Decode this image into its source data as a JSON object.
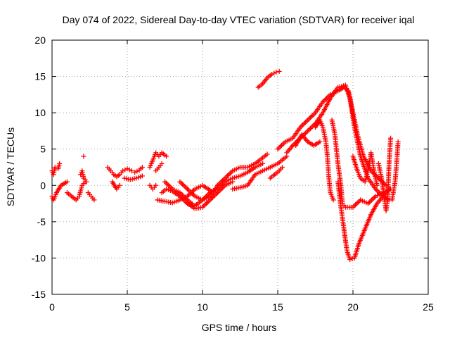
{
  "chart_data": {
    "type": "scatter",
    "title": "Day 074 of 2022, Sidereal Day-to-day VTEC variation (SDTVAR) for receiver iqal",
    "xlabel": "GPS time / hours",
    "ylabel": "SDTVAR / TECUs",
    "xlim": [
      0,
      25
    ],
    "ylim": [
      -15,
      20
    ],
    "xticks": [
      "0",
      "5",
      "10",
      "15",
      "20",
      "25"
    ],
    "yticks": [
      "-15",
      "-10",
      "-5",
      "0",
      "5",
      "10",
      "15",
      "20"
    ],
    "grid": true,
    "marker": "+",
    "color": "#ff0000",
    "segments": [
      {
        "name": "arc-1",
        "points": [
          [
            0.0,
            2.0
          ],
          [
            0.1,
            1.5
          ],
          [
            0.2,
            2.5
          ],
          [
            0.4,
            2.3
          ],
          [
            0.5,
            3.0
          ]
        ]
      },
      {
        "name": "arc-2",
        "points": [
          [
            0.0,
            -1.5
          ],
          [
            0.1,
            -2.0
          ],
          [
            0.3,
            -1.0
          ],
          [
            0.6,
            0.0
          ],
          [
            1.0,
            0.5
          ]
        ]
      },
      {
        "name": "arc-3",
        "points": [
          [
            1.0,
            -1.0
          ],
          [
            1.3,
            -1.5
          ],
          [
            1.6,
            -2.0
          ],
          [
            1.8,
            -1.5
          ],
          [
            2.0,
            0.0
          ],
          [
            2.2,
            0.5
          ]
        ]
      },
      {
        "name": "arc-4",
        "points": [
          [
            1.9,
            1.5
          ],
          [
            2.0,
            2.0
          ],
          [
            2.1,
            1.0
          ],
          [
            2.2,
            0.8
          ],
          [
            2.3,
            0.5
          ]
        ]
      },
      {
        "name": "arc-5",
        "points": [
          [
            2.1,
            4.0
          ]
        ]
      },
      {
        "name": "arc-6",
        "points": [
          [
            2.4,
            -1.0
          ],
          [
            2.6,
            -1.5
          ],
          [
            2.8,
            -2.0
          ]
        ]
      },
      {
        "name": "arc-7",
        "points": [
          [
            3.7,
            2.5
          ],
          [
            3.9,
            2.0
          ],
          [
            4.1,
            1.5
          ],
          [
            4.3,
            1.2
          ],
          [
            4.5,
            1.5
          ],
          [
            4.7,
            2.0
          ],
          [
            5.0,
            2.3
          ],
          [
            5.3,
            2.0
          ],
          [
            5.5,
            1.8
          ],
          [
            5.8,
            2.1
          ],
          [
            6.0,
            2.5
          ]
        ]
      },
      {
        "name": "arc-8",
        "points": [
          [
            4.0,
            0.5
          ],
          [
            4.3,
            -0.5
          ],
          [
            4.5,
            0.0
          ]
        ]
      },
      {
        "name": "arc-9",
        "points": [
          [
            4.8,
            1.0
          ],
          [
            5.2,
            0.8
          ],
          [
            5.6,
            1.0
          ],
          [
            6.0,
            1.3
          ]
        ]
      },
      {
        "name": "arc-10",
        "points": [
          [
            6.5,
            2.5
          ],
          [
            6.7,
            3.5
          ],
          [
            6.9,
            4.5
          ],
          [
            7.1,
            4.0
          ],
          [
            7.3,
            4.5
          ],
          [
            7.6,
            4.0
          ]
        ]
      },
      {
        "name": "arc-11",
        "points": [
          [
            6.9,
            2.0
          ],
          [
            7.1,
            2.5
          ],
          [
            7.3,
            3.0
          ]
        ]
      },
      {
        "name": "arc-12",
        "points": [
          [
            6.5,
            0.0
          ],
          [
            6.7,
            -0.5
          ],
          [
            6.9,
            0.0
          ]
        ]
      },
      {
        "name": "arc-13",
        "points": [
          [
            7.0,
            -2.0
          ],
          [
            7.5,
            -2.2
          ],
          [
            8.0,
            -2.4
          ],
          [
            8.5,
            -2.0
          ],
          [
            9.0,
            -1.5
          ],
          [
            9.5,
            -0.5
          ],
          [
            10.0,
            0.0
          ],
          [
            10.3,
            -0.4
          ],
          [
            10.6,
            -0.8
          ]
        ]
      },
      {
        "name": "arc-14",
        "points": [
          [
            7.3,
            -1.0
          ],
          [
            7.6,
            -0.5
          ],
          [
            8.0,
            -0.8
          ],
          [
            8.5,
            -1.5
          ],
          [
            9.0,
            -2.5
          ],
          [
            9.5,
            -3.2
          ],
          [
            10.0,
            -3.0
          ],
          [
            10.5,
            -2.0
          ],
          [
            11.0,
            -1.0
          ],
          [
            11.5,
            0.0
          ],
          [
            12.0,
            0.5
          ]
        ]
      },
      {
        "name": "arc-15",
        "points": [
          [
            7.5,
            0.5
          ],
          [
            8.0,
            -0.5
          ],
          [
            8.5,
            -1.0
          ],
          [
            9.0,
            -2.0
          ],
          [
            9.3,
            -2.5
          ]
        ]
      },
      {
        "name": "arc-16",
        "points": [
          [
            8.5,
            0.5
          ],
          [
            9.0,
            -0.5
          ],
          [
            9.5,
            -1.5
          ],
          [
            10.0,
            -2.0
          ],
          [
            10.5,
            -1.5
          ],
          [
            11.0,
            0.0
          ],
          [
            11.5,
            1.0
          ],
          [
            12.0,
            2.0
          ],
          [
            12.5,
            2.5
          ],
          [
            13.0,
            2.5
          ],
          [
            13.5,
            3.0
          ],
          [
            14.0,
            3.8
          ],
          [
            14.3,
            4.3
          ]
        ]
      },
      {
        "name": "arc-17",
        "points": [
          [
            9.0,
            -2.5
          ],
          [
            9.5,
            -2.8
          ],
          [
            10.0,
            -2.0
          ],
          [
            10.5,
            -1.0
          ],
          [
            11.0,
            -0.5
          ],
          [
            11.5,
            0.5
          ],
          [
            12.0,
            1.0
          ],
          [
            12.5,
            1.3
          ],
          [
            13.0,
            1.8
          ],
          [
            13.5,
            2.5
          ],
          [
            14.0,
            3.0
          ]
        ]
      },
      {
        "name": "arc-18",
        "points": [
          [
            12.0,
            -0.5
          ],
          [
            12.5,
            -0.3
          ],
          [
            13.0,
            0.0
          ],
          [
            13.5,
            1.5
          ],
          [
            14.0,
            2.0
          ],
          [
            14.5,
            2.5
          ],
          [
            15.0,
            3.0
          ],
          [
            15.3,
            3.5
          ],
          [
            15.6,
            4.0
          ]
        ]
      },
      {
        "name": "arc-19",
        "points": [
          [
            14.5,
            1.0
          ],
          [
            14.8,
            1.5
          ],
          [
            15.1,
            2.0
          ],
          [
            15.3,
            2.5
          ]
        ]
      },
      {
        "name": "arc-20",
        "points": [
          [
            13.7,
            13.5
          ],
          [
            14.0,
            14.0
          ],
          [
            14.3,
            14.8
          ],
          [
            14.6,
            15.3
          ],
          [
            14.9,
            15.6
          ],
          [
            15.1,
            15.7
          ]
        ]
      },
      {
        "name": "arc-21",
        "points": [
          [
            15.0,
            5.0
          ],
          [
            15.5,
            6.0
          ],
          [
            16.0,
            6.5
          ],
          [
            16.5,
            8.0
          ],
          [
            17.0,
            9.0
          ],
          [
            17.5,
            10.0
          ],
          [
            18.0,
            11.5
          ],
          [
            18.5,
            12.5
          ],
          [
            19.0,
            13.0
          ],
          [
            19.4,
            13.5
          ],
          [
            19.7,
            13.0
          ],
          [
            20.0,
            10.0
          ],
          [
            20.3,
            7.0
          ],
          [
            20.7,
            4.0
          ],
          [
            21.2,
            2.0
          ],
          [
            21.7,
            1.0
          ],
          [
            22.2,
            0.0
          ]
        ]
      },
      {
        "name": "arc-22",
        "points": [
          [
            15.6,
            4.5
          ],
          [
            16.0,
            5.5
          ],
          [
            16.5,
            6.5
          ],
          [
            17.0,
            7.5
          ],
          [
            17.5,
            8.5
          ],
          [
            18.0,
            10.0
          ],
          [
            18.5,
            12.0
          ],
          [
            19.0,
            13.5
          ],
          [
            19.5,
            13.8
          ],
          [
            19.8,
            12.0
          ],
          [
            20.1,
            8.0
          ],
          [
            20.5,
            4.0
          ],
          [
            21.0,
            1.0
          ],
          [
            21.5,
            -0.5
          ],
          [
            22.0,
            -1.5
          ],
          [
            22.4,
            -2.0
          ]
        ]
      },
      {
        "name": "arc-23",
        "points": [
          [
            16.2,
            5.5
          ],
          [
            16.6,
            7.0
          ],
          [
            17.0,
            6.0
          ],
          [
            17.4,
            5.5
          ],
          [
            17.8,
            6.0
          ]
        ]
      },
      {
        "name": "arc-24",
        "points": [
          [
            17.5,
            8.0
          ],
          [
            17.8,
            9.0
          ],
          [
            18.0,
            8.0
          ],
          [
            18.2,
            6.0
          ],
          [
            18.3,
            4.0
          ],
          [
            18.4,
            1.0
          ],
          [
            18.5,
            -1.0
          ],
          [
            18.7,
            -2.0
          ]
        ]
      },
      {
        "name": "arc-25",
        "points": [
          [
            18.6,
            9.0
          ],
          [
            18.8,
            7.0
          ],
          [
            19.0,
            3.0
          ],
          [
            19.2,
            0.0
          ],
          [
            19.3,
            -2.5
          ],
          [
            19.5,
            -3.0
          ],
          [
            20.0,
            -3.0
          ],
          [
            20.5,
            -2.0
          ],
          [
            21.0,
            -2.5
          ],
          [
            21.5,
            -1.5
          ],
          [
            22.0,
            -1.0
          ],
          [
            22.5,
            -0.5
          ]
        ]
      },
      {
        "name": "arc-26",
        "points": [
          [
            19.0,
            0.5
          ],
          [
            19.2,
            -3.0
          ],
          [
            19.4,
            -6.0
          ],
          [
            19.6,
            -9.0
          ],
          [
            19.8,
            -10.2
          ],
          [
            20.1,
            -10.0
          ],
          [
            20.4,
            -8.0
          ],
          [
            20.8,
            -6.0
          ],
          [
            21.2,
            -4.0
          ],
          [
            21.6,
            -2.5
          ],
          [
            22.0,
            -1.5
          ],
          [
            22.4,
            -0.5
          ]
        ]
      },
      {
        "name": "arc-27",
        "points": [
          [
            20.0,
            4.0
          ],
          [
            20.3,
            2.0
          ],
          [
            20.5,
            1.0
          ],
          [
            20.8,
            0.5
          ],
          [
            21.0,
            2.0
          ],
          [
            21.2,
            4.5
          ],
          [
            21.4,
            2.0
          ],
          [
            21.6,
            0.0
          ]
        ]
      },
      {
        "name": "arc-28",
        "points": [
          [
            21.7,
            3.0
          ],
          [
            21.9,
            1.0
          ],
          [
            22.1,
            -2.0
          ],
          [
            22.2,
            -3.5
          ],
          [
            22.3,
            -2.0
          ],
          [
            22.4,
            3.0
          ],
          [
            22.5,
            6.5
          ]
        ]
      },
      {
        "name": "arc-29",
        "points": [
          [
            22.6,
            -2.0
          ],
          [
            22.8,
            0.5
          ],
          [
            22.9,
            3.0
          ],
          [
            23.0,
            6.0
          ]
        ]
      }
    ]
  }
}
